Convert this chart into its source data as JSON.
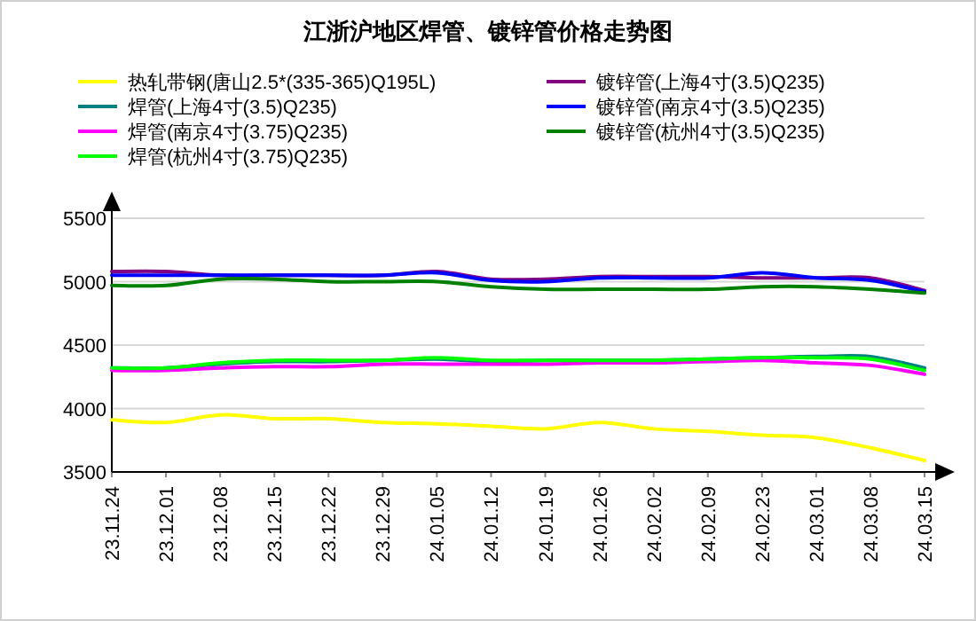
{
  "chart_data": {
    "type": "line",
    "title": "江浙沪地区焊管、镀锌管价格走势图",
    "categories": [
      "23.11.24",
      "23.12.01",
      "23.12.08",
      "23.12.15",
      "23.12.22",
      "23.12.29",
      "24.01.05",
      "24.01.12",
      "24.01.19",
      "24.01.26",
      "24.02.02",
      "24.02.09",
      "24.02.23",
      "24.03.01",
      "24.03.08",
      "24.03.15"
    ],
    "series": [
      {
        "name": "热轧带钢(唐山2.5*(335-365)Q195L)",
        "color": "#ffff00",
        "values": [
          3910,
          3890,
          3950,
          3920,
          3920,
          3890,
          3880,
          3860,
          3840,
          3890,
          3840,
          3820,
          3790,
          3770,
          3690,
          3590
        ]
      },
      {
        "name": "焊管(上海4寸(3.5)Q235)",
        "color": "#008080",
        "values": [
          4320,
          4320,
          4350,
          4370,
          4370,
          4380,
          4390,
          4370,
          4380,
          4380,
          4380,
          4390,
          4400,
          4410,
          4410,
          4320
        ]
      },
      {
        "name": "焊管(南京4寸(3.75)Q235)",
        "color": "#ff00ff",
        "values": [
          4300,
          4300,
          4320,
          4330,
          4330,
          4350,
          4350,
          4350,
          4350,
          4360,
          4360,
          4370,
          4380,
          4360,
          4340,
          4270
        ]
      },
      {
        "name": "焊管(杭州4寸(3.75)Q235)",
        "color": "#00ff00",
        "values": [
          4320,
          4320,
          4360,
          4380,
          4380,
          4380,
          4400,
          4380,
          4380,
          4380,
          4380,
          4390,
          4400,
          4400,
          4390,
          4300
        ]
      },
      {
        "name": "镀锌管(上海4寸(3.5)Q235)",
        "color": "#800080",
        "values": [
          5080,
          5080,
          5050,
          5050,
          5050,
          5050,
          5080,
          5020,
          5020,
          5040,
          5040,
          5040,
          5030,
          5030,
          5030,
          4930
        ]
      },
      {
        "name": "镀锌管(南京4寸(3.5)Q235)",
        "color": "#0000ff",
        "values": [
          5050,
          5050,
          5050,
          5050,
          5050,
          5050,
          5070,
          5010,
          5000,
          5030,
          5030,
          5030,
          5070,
          5030,
          5010,
          4920
        ]
      },
      {
        "name": "镀锌管(杭州4寸(3.5)Q235)",
        "color": "#008000",
        "values": [
          4970,
          4970,
          5020,
          5020,
          5000,
          5000,
          5000,
          4960,
          4940,
          4940,
          4940,
          4940,
          4960,
          4960,
          4940,
          4910
        ]
      }
    ],
    "ylim": [
      3500,
      5500
    ],
    "yticks": [
      3500,
      4000,
      4500,
      5000,
      5500
    ],
    "grid": "y",
    "legend": "top"
  }
}
